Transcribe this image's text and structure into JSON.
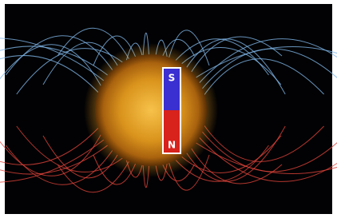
{
  "magnet": {
    "top_pole": "S",
    "bottom_pole": "N"
  }
}
